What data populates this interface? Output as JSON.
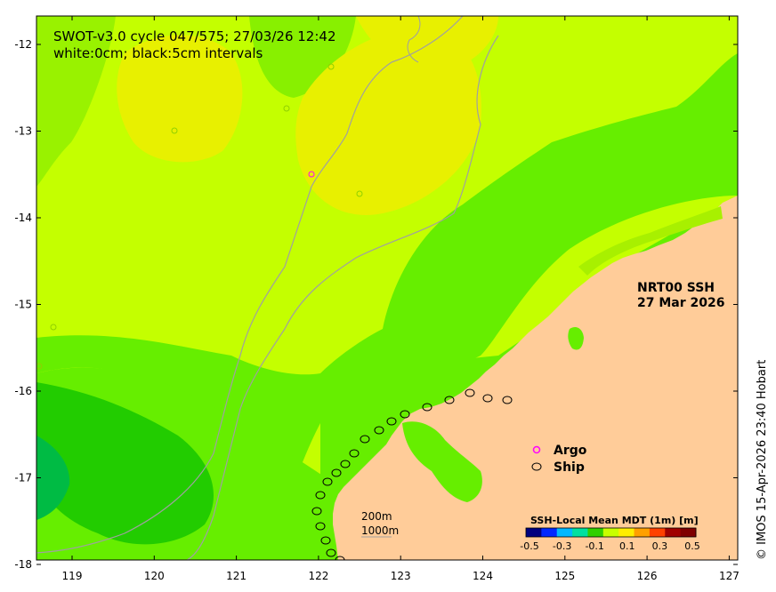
{
  "title": {
    "line1": "SWOT-v3.0 cycle 047/575; 27/03/26 12:42",
    "line2": "white:0cm; black:5cm intervals"
  },
  "product": {
    "line1": "NRT00 SSH",
    "line2": "27 Mar 2026"
  },
  "legend": {
    "argo_label": "Argo",
    "ship_label": "Ship",
    "argo_color": "#ff00ff",
    "ship_color": "#000000"
  },
  "scale": {
    "label_200m": "200m",
    "label_1000m": "1000m"
  },
  "colorbar": {
    "title": "SSH-Local Mean MDT (1m) [m]",
    "ticks": [
      "-0.5",
      "-0.3",
      "-0.1",
      "0.1",
      "0.3",
      "0.5"
    ],
    "colors": [
      "#00007f",
      "#0028ff",
      "#00b8ff",
      "#00e0a0",
      "#30d000",
      "#c8ff00",
      "#ffee00",
      "#ffa000",
      "#ff4000",
      "#a00000",
      "#7f0000"
    ]
  },
  "credit": "© IMOS 15-Apr-2026 23:40 Hobart",
  "axes": {
    "x_ticks": [
      "119",
      "120",
      "121",
      "122",
      "123",
      "124",
      "125",
      "126",
      "127"
    ],
    "y_ticks": [
      "-12",
      "-13",
      "-14",
      "-15",
      "-16",
      "-17",
      "-18"
    ]
  },
  "colors": {
    "land": "#ffcc99",
    "ssh_high": "#e6f000",
    "ssh_mid": "#c4ff00",
    "ssh_low": "#66ee00",
    "ssh_lowest": "#00bb33"
  }
}
